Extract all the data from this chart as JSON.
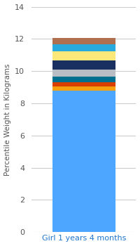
{
  "category": "Girl 1 years 4 months",
  "segments": [
    {
      "value": 8.8,
      "color": "#4da6ff"
    },
    {
      "value": 0.25,
      "color": "#f5a011"
    },
    {
      "value": 0.25,
      "color": "#d94000"
    },
    {
      "value": 0.35,
      "color": "#007090"
    },
    {
      "value": 0.45,
      "color": "#b8bec4"
    },
    {
      "value": 0.55,
      "color": "#1a3060"
    },
    {
      "value": 0.6,
      "color": "#fde97a"
    },
    {
      "value": 0.4,
      "color": "#29aadf"
    },
    {
      "value": 0.4,
      "color": "#b07050"
    }
  ],
  "ylabel": "Percentile Weight in Kilograms",
  "ylim": [
    0,
    14
  ],
  "yticks": [
    0,
    2,
    4,
    6,
    8,
    10,
    12,
    14
  ],
  "plot_bg_color": "#ffffff",
  "bar_width": 0.6,
  "ylabel_fontsize": 7.5,
  "tick_fontsize": 8,
  "xlabel_fontsize": 8,
  "xlabel_color": "#2277cc"
}
